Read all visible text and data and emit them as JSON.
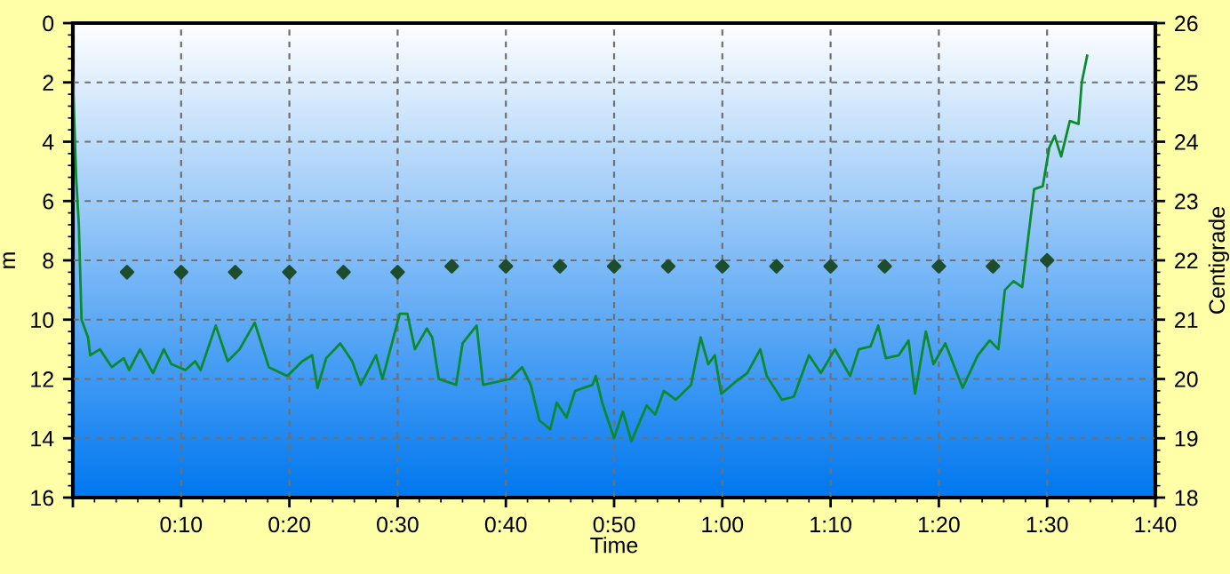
{
  "chart_data": {
    "type": "line",
    "xlabel": "Time",
    "ylabel": "m",
    "y2label": "Centigrade",
    "xlim": [
      0,
      100
    ],
    "xticks": [
      {
        "value": 0,
        "label": null
      },
      {
        "value": 10,
        "label": "0:10"
      },
      {
        "value": 20,
        "label": "0:20"
      },
      {
        "value": 30,
        "label": "0:30"
      },
      {
        "value": 40,
        "label": "0:40"
      },
      {
        "value": 50,
        "label": "0:50"
      },
      {
        "value": 60,
        "label": "1:00"
      },
      {
        "value": 70,
        "label": "1:10"
      },
      {
        "value": 80,
        "label": "1:20"
      },
      {
        "value": 90,
        "label": "1:30"
      },
      {
        "value": 100,
        "label": "1:40"
      }
    ],
    "ylim": [
      16,
      0
    ],
    "yticks": [
      0,
      2,
      4,
      6,
      8,
      10,
      12,
      14,
      16
    ],
    "y2lim": [
      18,
      26
    ],
    "y2ticks": [
      18,
      19,
      20,
      21,
      22,
      23,
      24,
      25,
      26
    ],
    "grid": true,
    "series": [
      {
        "color": "#0b8a2e",
        "line_style": "solid",
        "marker": "none",
        "x": [
          0,
          0.3,
          0.55,
          0.8,
          1.4,
          1.6,
          2.5,
          3.6,
          4.7,
          5.2,
          6.2,
          7.4,
          8.4,
          9.1,
          10.4,
          11.3,
          11.8,
          13.2,
          14.3,
          15.4,
          16.8,
          18.1,
          19.8,
          21.2,
          22.1,
          22.6,
          23.4,
          24.7,
          25.8,
          26.6,
          28.0,
          28.6,
          30.2,
          30.9,
          31.6,
          32.7,
          33.2,
          33.8,
          35.4,
          36.0,
          37.3,
          37.9,
          40.4,
          41.5,
          42.3,
          43.1,
          44.1,
          44.7,
          45.6,
          46.4,
          48.0,
          48.3,
          48.9,
          50.0,
          50.8,
          51.6,
          53.0,
          53.8,
          54.6,
          55.7,
          57.1,
          58.0,
          58.7,
          59.3,
          59.9,
          61.2,
          62.3,
          63.5,
          64.1,
          65.5,
          66.6,
          68.0,
          69.1,
          70.4,
          71.8,
          72.6,
          73.7,
          74.4,
          75.1,
          76.3,
          77.2,
          77.8,
          78.8,
          79.5,
          80.6,
          82.2,
          83.6,
          84.7,
          85.5,
          86.1,
          86.9,
          87.7,
          88.2,
          88.8,
          89.6,
          90.2,
          90.7,
          91.3,
          92.1,
          92.9,
          93.2,
          93.7
        ],
        "values": [
          1.8,
          5.2,
          6.8,
          10.0,
          10.6,
          11.2,
          11.0,
          11.6,
          11.3,
          11.7,
          11.0,
          11.8,
          11.0,
          11.5,
          11.7,
          11.4,
          11.7,
          10.2,
          11.4,
          11.0,
          10.1,
          11.6,
          11.9,
          11.4,
          11.2,
          12.3,
          11.3,
          10.8,
          11.4,
          12.2,
          11.2,
          12.0,
          9.8,
          9.8,
          11.0,
          10.3,
          10.6,
          12.0,
          12.2,
          10.8,
          10.2,
          12.2,
          12.0,
          11.6,
          12.2,
          13.4,
          13.7,
          12.8,
          13.3,
          12.4,
          12.2,
          11.9,
          12.8,
          14.0,
          13.1,
          14.1,
          12.9,
          13.2,
          12.4,
          12.7,
          12.2,
          10.6,
          11.5,
          11.2,
          12.5,
          12.1,
          11.8,
          11.0,
          11.9,
          12.7,
          12.6,
          11.2,
          11.8,
          11.0,
          11.9,
          11.0,
          10.9,
          10.2,
          11.3,
          11.2,
          10.7,
          12.5,
          10.4,
          11.5,
          10.8,
          12.3,
          11.2,
          10.7,
          11.0,
          9.0,
          8.7,
          8.9,
          7.4,
          5.6,
          5.5,
          4.2,
          3.8,
          4.5,
          3.3,
          3.4,
          2.0,
          1.1
        ]
      },
      {
        "type": "scatter",
        "axis": "y2",
        "color": "#1e4d2e",
        "marker": "diamond",
        "x": [
          5,
          10,
          15,
          20,
          25,
          30,
          35,
          40,
          45,
          50,
          55,
          60,
          65,
          70,
          75,
          80,
          85,
          90
        ],
        "values": [
          21.8,
          21.8,
          21.8,
          21.8,
          21.8,
          21.8,
          21.9,
          21.9,
          21.9,
          21.9,
          21.9,
          21.9,
          21.9,
          21.9,
          21.9,
          21.9,
          21.9,
          22.0
        ]
      }
    ]
  }
}
